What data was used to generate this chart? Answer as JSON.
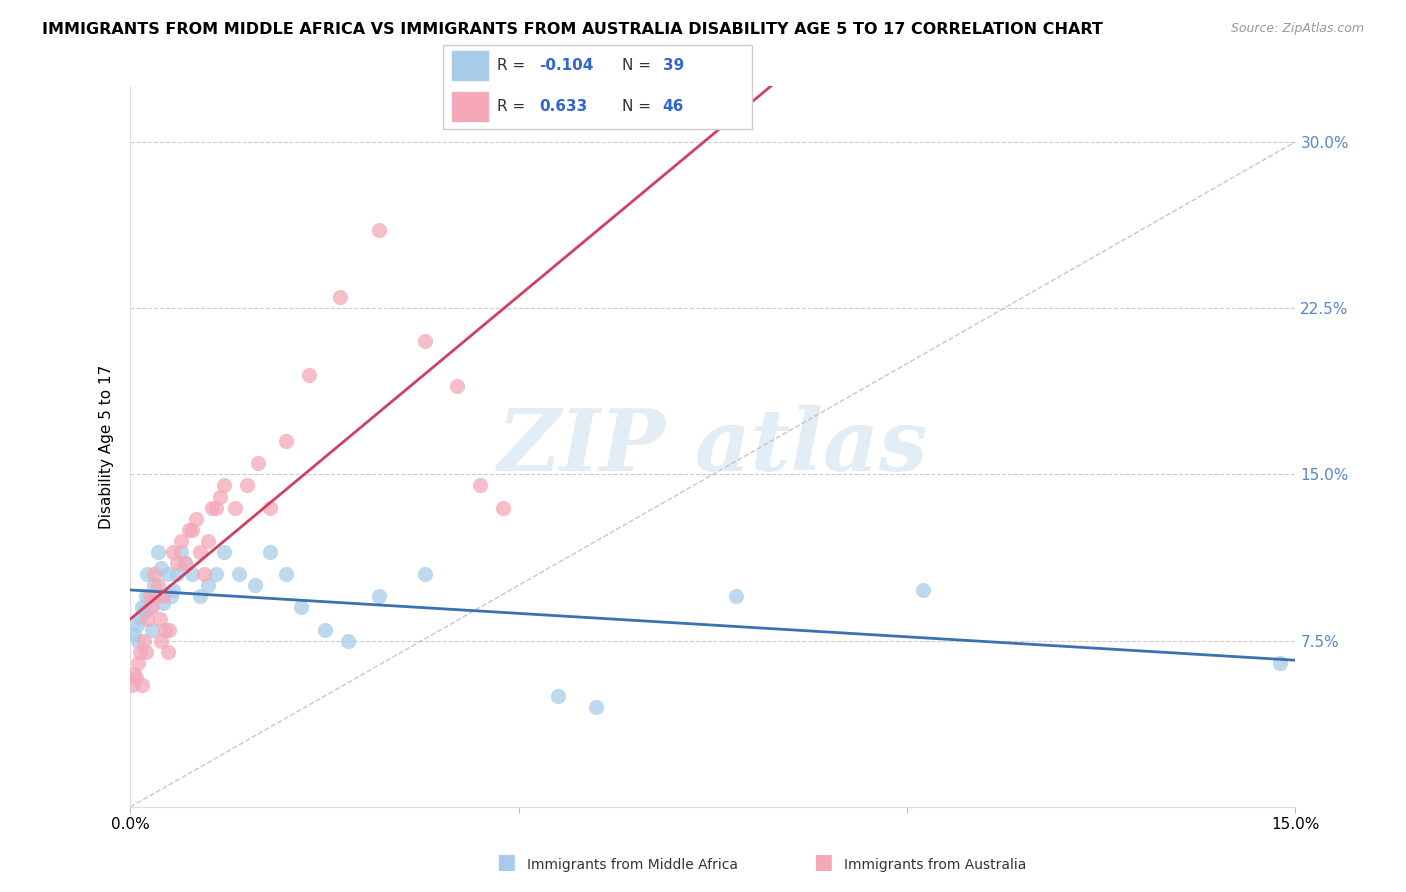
{
  "title": "IMMIGRANTS FROM MIDDLE AFRICA VS IMMIGRANTS FROM AUSTRALIA DISABILITY AGE 5 TO 17 CORRELATION CHART",
  "source": "Source: ZipAtlas.com",
  "ylabel": "Disability Age 5 to 17",
  "series": [
    {
      "label": "Immigrants from Middle Africa",
      "color": "#A8CCE8",
      "line_color": "#3A72B0",
      "R": -0.104,
      "N": 39,
      "x": [
        0.05,
        0.08,
        0.1,
        0.12,
        0.15,
        0.18,
        0.2,
        0.22,
        0.25,
        0.28,
        0.3,
        0.35,
        0.4,
        0.42,
        0.48,
        0.52,
        0.55,
        0.6,
        0.65,
        0.7,
        0.8,
        0.9,
        1.0,
        1.1,
        1.2,
        1.4,
        1.6,
        1.8,
        2.0,
        2.2,
        2.5,
        2.8,
        3.2,
        3.8,
        5.5,
        6.0,
        7.8,
        10.2,
        14.8
      ],
      "y": [
        7.8,
        8.2,
        7.5,
        8.5,
        9.0,
        8.8,
        9.5,
        10.5,
        9.0,
        8.0,
        10.0,
        11.5,
        10.8,
        9.2,
        10.5,
        9.5,
        9.8,
        10.5,
        11.5,
        11.0,
        10.5,
        9.5,
        10.0,
        10.5,
        11.5,
        10.5,
        10.0,
        11.5,
        10.5,
        9.0,
        8.0,
        7.5,
        9.5,
        10.5,
        5.0,
        4.5,
        9.5,
        9.8,
        6.5
      ]
    },
    {
      "label": "Immigrants from Australia",
      "color": "#F4A8B8",
      "line_color": "#D04060",
      "R": 0.633,
      "N": 46,
      "x": [
        0.02,
        0.05,
        0.07,
        0.1,
        0.12,
        0.15,
        0.18,
        0.2,
        0.22,
        0.25,
        0.28,
        0.3,
        0.32,
        0.35,
        0.38,
        0.4,
        0.42,
        0.45,
        0.48,
        0.5,
        0.55,
        0.6,
        0.65,
        0.7,
        0.75,
        0.8,
        0.85,
        0.9,
        0.95,
        1.0,
        1.05,
        1.1,
        1.15,
        1.2,
        1.35,
        1.5,
        1.65,
        1.8,
        2.0,
        2.3,
        2.7,
        3.2,
        3.8,
        4.2,
        4.5,
        4.8
      ],
      "y": [
        5.5,
        6.0,
        5.8,
        6.5,
        7.0,
        5.5,
        7.5,
        7.0,
        8.5,
        9.5,
        9.0,
        10.5,
        9.5,
        10.0,
        8.5,
        7.5,
        9.5,
        8.0,
        7.0,
        8.0,
        11.5,
        11.0,
        12.0,
        11.0,
        12.5,
        12.5,
        13.0,
        11.5,
        10.5,
        12.0,
        13.5,
        13.5,
        14.0,
        14.5,
        13.5,
        14.5,
        15.5,
        13.5,
        16.5,
        19.5,
        23.0,
        26.0,
        21.0,
        19.0,
        14.5,
        13.5
      ]
    }
  ],
  "xlim": [
    0.0,
    15.0
  ],
  "ylim": [
    0.0,
    32.5
  ],
  "yticks": [
    0.0,
    7.5,
    15.0,
    22.5,
    30.0
  ],
  "ytick_labels": [
    "",
    "7.5%",
    "15.0%",
    "22.5%",
    "30.0%"
  ],
  "background_color": "#FFFFFF",
  "grid_color": "#CCCCCC",
  "legend_R_color": "#3366CC",
  "title_fontsize": 11.5,
  "watermark_text": "ZIP atlas"
}
